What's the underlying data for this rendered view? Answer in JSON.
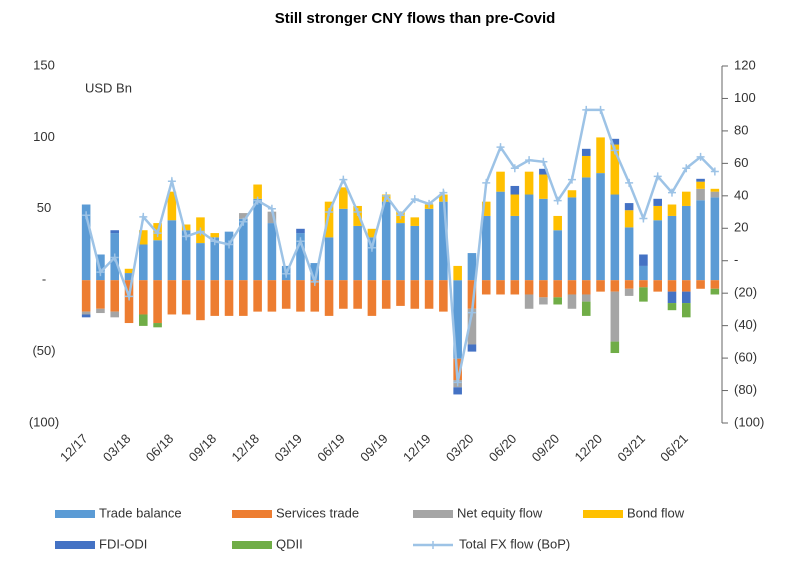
{
  "chart_data": {
    "type": "bar",
    "stacked": true,
    "title": "Still stronger CNY flows than pre-Covid",
    "ylabel": "USD Bn",
    "categories": [
      "12/17",
      null,
      null,
      "03/18",
      null,
      null,
      "06/18",
      null,
      null,
      "09/18",
      null,
      null,
      "12/18",
      null,
      null,
      "03/19",
      null,
      null,
      "06/19",
      null,
      null,
      "09/19",
      null,
      null,
      "12/19",
      null,
      null,
      "03/20",
      null,
      null,
      "06/20",
      null,
      null,
      "09/20",
      null,
      null,
      "12/20",
      null,
      null,
      "03/21",
      null,
      null,
      "06/21",
      null,
      null
    ],
    "ylim": [
      -100,
      150
    ],
    "yticks": [
      {
        "value": -100,
        "label": "(100)"
      },
      {
        "value": -50,
        "label": "(50)"
      },
      {
        "value": 0,
        "label": "-"
      },
      50,
      100,
      150
    ],
    "y2lim": [
      -100,
      120
    ],
    "y2ticks": [
      {
        "value": -100,
        "label": "(100)"
      },
      {
        "value": -80,
        "label": "(80)"
      },
      {
        "value": -60,
        "label": "(60)"
      },
      {
        "value": -40,
        "label": "(40)"
      },
      {
        "value": -20,
        "label": "(20)"
      },
      {
        "value": 0,
        "label": "-"
      },
      20,
      40,
      60,
      80,
      100,
      120
    ],
    "series": [
      {
        "name": "Trade balance",
        "color": "#5b9bd5",
        "values": [
          53,
          18,
          33,
          5,
          25,
          28,
          42,
          35,
          26,
          30,
          34,
          43,
          57,
          40,
          10,
          33,
          12,
          30,
          50,
          38,
          30,
          55,
          40,
          38,
          50,
          55,
          -55,
          19,
          45,
          62,
          45,
          60,
          57,
          35,
          58,
          72,
          75,
          60,
          37,
          10,
          42,
          45,
          52,
          56,
          58
        ]
      },
      {
        "name": "Services trade",
        "color": "#ed7d31",
        "values": [
          -22,
          -20,
          -22,
          -30,
          -24,
          -30,
          -24,
          -24,
          -28,
          -25,
          -25,
          -25,
          -22,
          -22,
          -20,
          -22,
          -22,
          -25,
          -20,
          -20,
          -25,
          -20,
          -18,
          -20,
          -20,
          -22,
          -15,
          -20,
          -10,
          -10,
          -10,
          -10,
          -12,
          -12,
          -10,
          -10,
          -8,
          -8,
          -6,
          -5,
          -8,
          -8,
          -8,
          -6,
          -6
        ]
      },
      {
        "name": "Net equity flow",
        "color": "#a5a5a5",
        "values": [
          -2,
          -3,
          -4,
          0,
          0,
          0,
          0,
          0,
          0,
          0,
          0,
          4,
          0,
          8,
          0,
          0,
          0,
          0,
          0,
          0,
          0,
          0,
          0,
          0,
          0,
          0,
          -5,
          -25,
          0,
          0,
          0,
          -10,
          -5,
          0,
          -10,
          -5,
          0,
          -35,
          -5,
          0,
          0,
          0,
          0,
          8,
          4
        ]
      },
      {
        "name": "Bond flow",
        "color": "#ffc000",
        "values": [
          0,
          0,
          0,
          3,
          10,
          12,
          20,
          4,
          18,
          3,
          0,
          0,
          10,
          0,
          0,
          0,
          0,
          25,
          15,
          14,
          6,
          5,
          8,
          6,
          3,
          5,
          10,
          0,
          10,
          14,
          15,
          16,
          17,
          10,
          5,
          15,
          25,
          35,
          12,
          0,
          10,
          8,
          10,
          5,
          2
        ]
      },
      {
        "name": "FDI-ODI",
        "color": "#4472c4",
        "values": [
          -2,
          0,
          2,
          0,
          0,
          0,
          0,
          0,
          0,
          0,
          0,
          0,
          0,
          0,
          0,
          3,
          0,
          0,
          0,
          0,
          0,
          0,
          0,
          0,
          0,
          0,
          -5,
          -5,
          0,
          0,
          6,
          0,
          4,
          0,
          0,
          5,
          0,
          4,
          5,
          8,
          5,
          -8,
          -8,
          2,
          0
        ]
      },
      {
        "name": "QDII",
        "color": "#70ad47",
        "values": [
          0,
          0,
          0,
          0,
          -8,
          -3,
          0,
          0,
          0,
          0,
          0,
          0,
          0,
          0,
          0,
          0,
          0,
          0,
          0,
          0,
          0,
          0,
          0,
          0,
          0,
          0,
          0,
          0,
          0,
          0,
          0,
          0,
          0,
          -5,
          0,
          -10,
          0,
          -8,
          0,
          -10,
          0,
          -5,
          -10,
          0,
          -4
        ]
      },
      {
        "name": "Total FX flow (BoP)",
        "color": "#9dc3e6",
        "type": "line",
        "axis": "y2",
        "values": [
          28,
          -7,
          2,
          -22,
          27,
          17,
          49,
          15,
          18,
          12,
          10,
          24,
          37,
          32,
          -8,
          12,
          -13,
          30,
          50,
          30,
          8,
          40,
          28,
          38,
          35,
          42,
          -75,
          -32,
          48,
          70,
          57,
          62,
          61,
          37,
          50,
          93,
          93,
          68,
          48,
          26,
          52,
          42,
          57,
          64,
          55
        ]
      }
    ]
  }
}
